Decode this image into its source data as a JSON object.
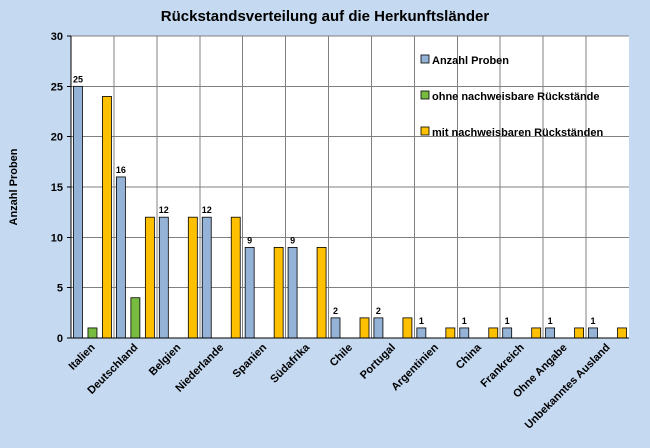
{
  "chart_data": {
    "type": "bar",
    "title": "Rückstandsverteilung auf die Herkunftsländer",
    "xlabel": "",
    "ylabel": "Anzahl Proben",
    "ylim": [
      0,
      30
    ],
    "yticks": [
      0,
      5,
      10,
      15,
      20,
      25,
      30
    ],
    "grid": true,
    "legend_position": "top-right",
    "categories": [
      "Italien",
      "Deutschland",
      "Belgien",
      "Niederlande",
      "Spanien",
      "Südafrika",
      "Chile",
      "Portugal",
      "Argentinien",
      "China",
      "Frankreich",
      "Ohne Angabe",
      "Unbekanntes Ausland"
    ],
    "series": [
      {
        "name": "Anzahl Proben",
        "color": "#95b3d7",
        "values": [
          25,
          16,
          12,
          12,
          9,
          9,
          2,
          2,
          1,
          1,
          1,
          1,
          1
        ],
        "data_labels": [
          "25",
          "16",
          "12",
          "12",
          "9",
          "9",
          "2",
          "2",
          "1",
          "1",
          "1",
          "1",
          "1"
        ]
      },
      {
        "name": "ohne nachweisbare Rückstände",
        "color": "#77bb41",
        "values": [
          1,
          4,
          0,
          0,
          0,
          0,
          0,
          0,
          0,
          0,
          0,
          0,
          0
        ]
      },
      {
        "name": "mit nachweisbaren Rückständen",
        "color": "#ffc000",
        "values": [
          24,
          12,
          12,
          12,
          9,
          9,
          2,
          2,
          1,
          1,
          1,
          1,
          1
        ]
      }
    ]
  }
}
